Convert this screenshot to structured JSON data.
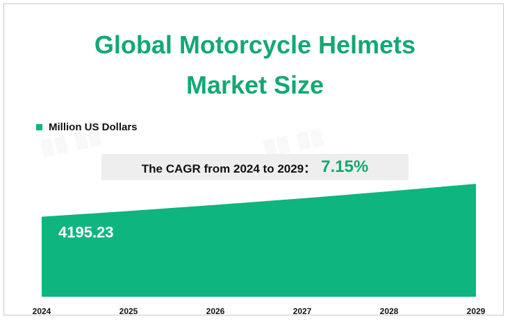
{
  "chart_data": {
    "type": "area",
    "title_line1": "Global Motorcycle Helmets",
    "title_line2": "Market Size",
    "legend": "Million US Dollars",
    "series": [
      {
        "name": "Million US Dollars",
        "values": [
          4195.23,
          4495.0,
          4817.0,
          5161.0,
          5530.0,
          5925.0
        ]
      }
    ],
    "categories": [
      "2024",
      "2025",
      "2026",
      "2027",
      "2028",
      "2029"
    ],
    "data_labels": [
      {
        "index": 0,
        "text": "4195.23"
      }
    ],
    "cagr_label": "The CAGR from 2024 to 2029：",
    "cagr_value": "7.15%",
    "ylim": [
      0,
      8000
    ],
    "grid": false,
    "legend_position": "top-left",
    "colors": {
      "title": "#13a872",
      "area": "#0fb57e",
      "cagr_box": "#eeeeee"
    }
  }
}
